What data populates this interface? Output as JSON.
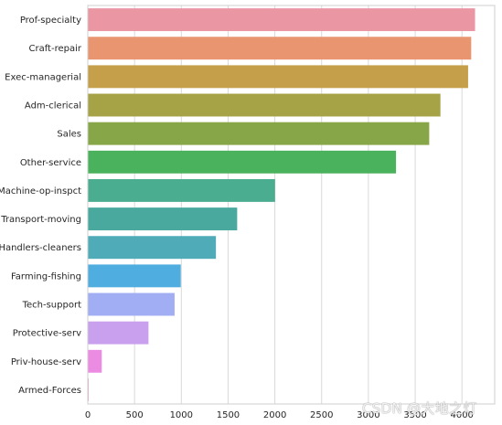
{
  "chart_data": {
    "type": "bar",
    "orientation": "horizontal",
    "categories": [
      "Prof-specialty",
      "Craft-repair",
      "Exec-managerial",
      "Adm-clerical",
      "Sales",
      "Other-service",
      "Machine-op-inspct",
      "Transport-moving",
      "Handlers-cleaners",
      "Farming-fishing",
      "Tech-support",
      "Protective-serv",
      "Priv-house-serv",
      "Armed-Forces"
    ],
    "values": [
      4140,
      4099,
      4066,
      3770,
      3650,
      3295,
      2002,
      1597,
      1370,
      994,
      928,
      649,
      149,
      9
    ],
    "colors": [
      "#ea96a3",
      "#e99670",
      "#c69f4b",
      "#a6a246",
      "#87a647",
      "#4ab15c",
      "#4bad8f",
      "#4aa99e",
      "#4eabb7",
      "#50ade0",
      "#a1aef3",
      "#c9a0ed",
      "#ec8be2",
      "#ef91c4"
    ],
    "xticks": [
      0,
      500,
      1000,
      1500,
      2000,
      2500,
      3000,
      3500,
      4000
    ],
    "xlim": [
      0,
      4350
    ],
    "xlabel": "",
    "ylabel": "",
    "title": "",
    "grid": "vertical",
    "grid_color": "#d9d9d9"
  },
  "watermark": {
    "text": "CSDN @大地之灯"
  }
}
